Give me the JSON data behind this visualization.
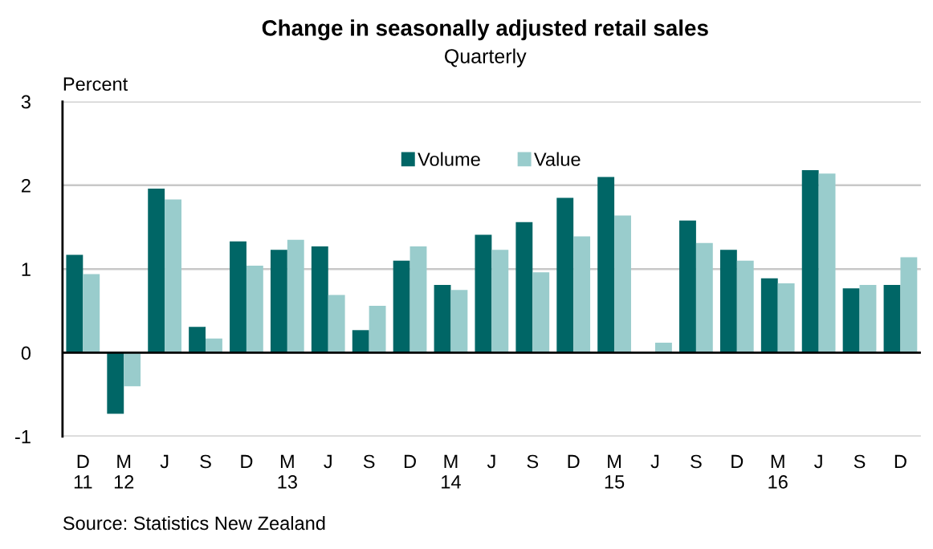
{
  "chart_data": {
    "type": "bar",
    "title": "Change in seasonally adjusted retail sales",
    "subtitle": "Quarterly",
    "ylabel": "Percent",
    "categories": [
      "D\n11",
      "M\n12",
      "J",
      "S",
      "D",
      "M\n13",
      "J",
      "S",
      "D",
      "M\n14",
      "J",
      "S",
      "D",
      "M\n15",
      "J",
      "S",
      "D",
      "M\n16",
      "J",
      "S",
      "D"
    ],
    "series": [
      {
        "name": "Volume",
        "color": "#006666",
        "values": [
          1.17,
          -0.73,
          1.96,
          0.31,
          1.33,
          1.23,
          1.27,
          0.27,
          1.1,
          0.81,
          1.41,
          1.56,
          1.85,
          2.1,
          0,
          1.58,
          1.23,
          0.89,
          2.18,
          0.77,
          0.81
        ]
      },
      {
        "name": "Value",
        "color": "#99cccc",
        "values": [
          0.94,
          -0.4,
          1.83,
          0.17,
          1.04,
          1.35,
          0.69,
          0.56,
          1.27,
          0.75,
          1.23,
          0.96,
          1.39,
          1.64,
          0.12,
          1.31,
          1.1,
          0.83,
          2.14,
          0.81,
          1.14
        ]
      }
    ],
    "ylim": [
      -1,
      3
    ],
    "yticks": [
      -1,
      0,
      1,
      2,
      3
    ],
    "grid": "y",
    "legend": "top",
    "annotations": [
      "Source: Statistics New Zealand"
    ]
  }
}
